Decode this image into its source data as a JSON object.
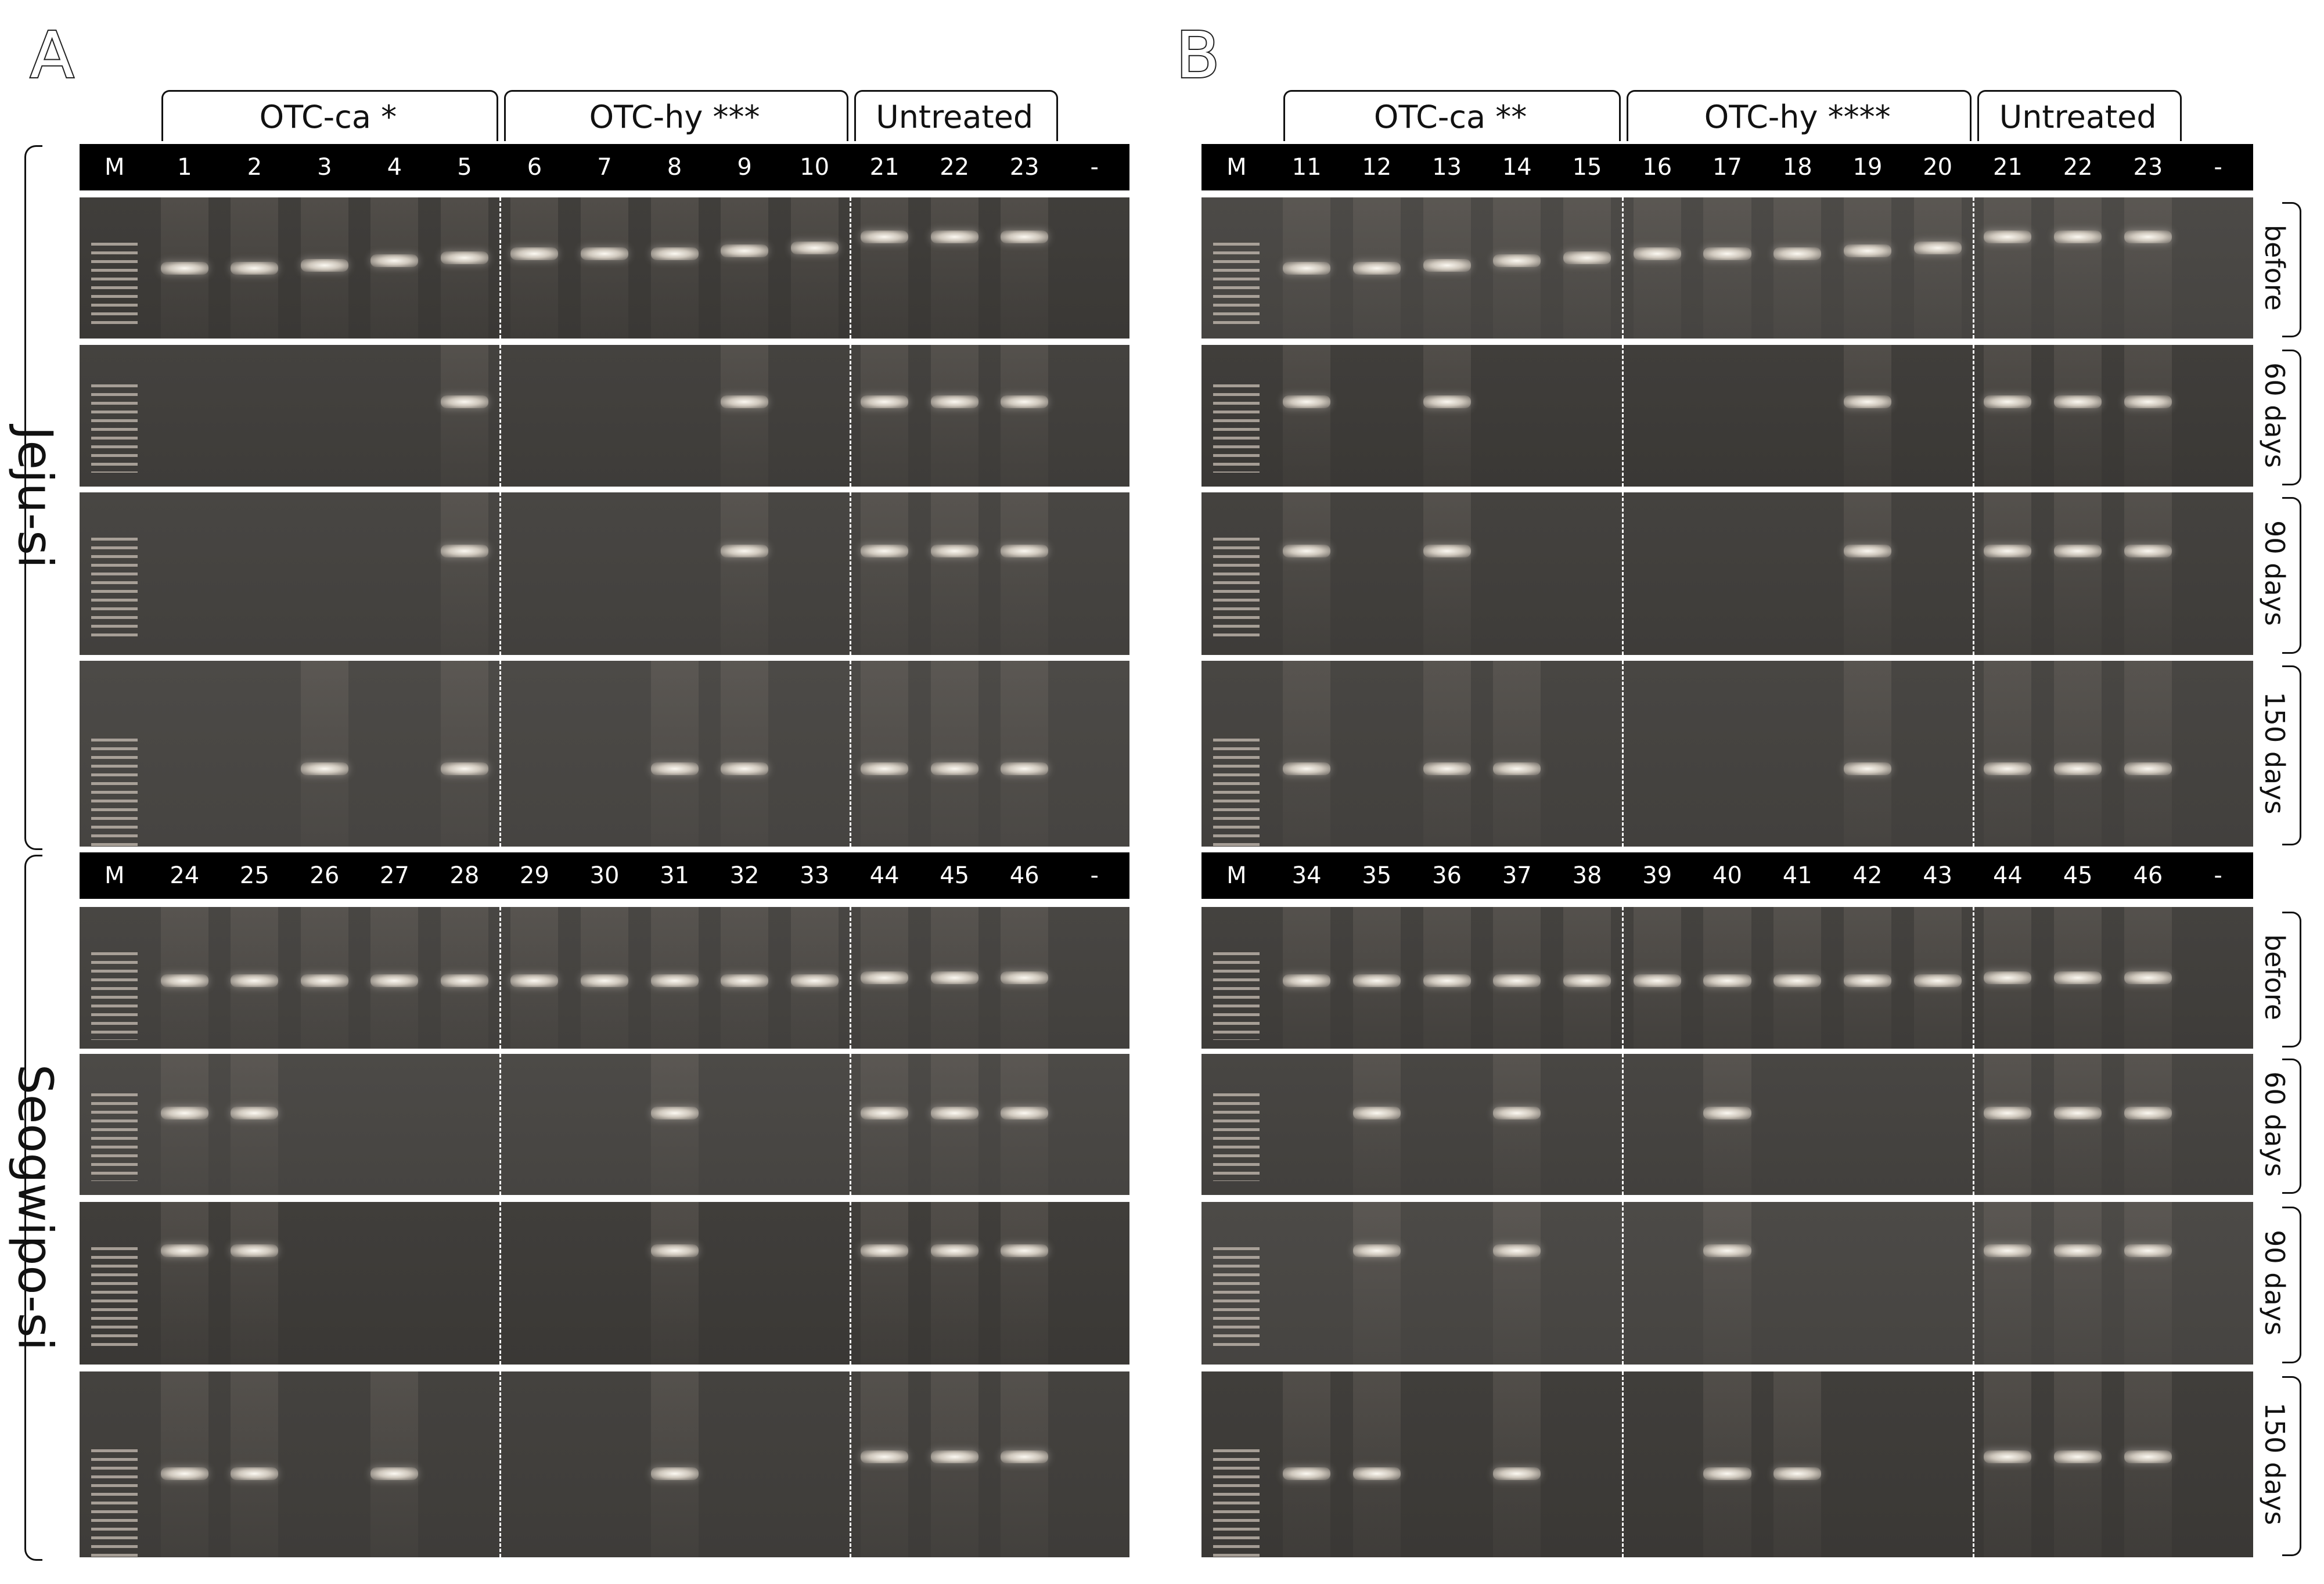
{
  "figure": {
    "panels": [
      {
        "letter": "A",
        "groups": [
          "OTC-ca *",
          "OTC-hy ***",
          "Untreated"
        ],
        "regions": [
          {
            "name": "Jeju-si",
            "lanes": [
              "M",
              "1",
              "2",
              "3",
              "4",
              "5",
              "6",
              "7",
              "8",
              "9",
              "10",
              "21",
              "22",
              "23",
              "-"
            ],
            "rows": [
              {
                "time": "before",
                "bands": [
                  1,
                  2,
                  3,
                  4,
                  5,
                  6,
                  7,
                  8,
                  9,
                  10,
                  11,
                  12,
                  13
                ]
              },
              {
                "time": "60 days",
                "bands": [
                  5,
                  9,
                  11,
                  12,
                  13
                ]
              },
              {
                "time": "90 days",
                "bands": [
                  5,
                  9,
                  11,
                  12,
                  13
                ]
              },
              {
                "time": "150 days",
                "bands": [
                  3,
                  5,
                  8,
                  9,
                  11,
                  12,
                  13
                ]
              }
            ]
          },
          {
            "name": "Seogwipo-si",
            "lanes": [
              "M",
              "24",
              "25",
              "26",
              "27",
              "28",
              "29",
              "30",
              "31",
              "32",
              "33",
              "44",
              "45",
              "46",
              "-"
            ],
            "rows": [
              {
                "time": "before",
                "bands": [
                  1,
                  2,
                  3,
                  4,
                  5,
                  6,
                  7,
                  8,
                  9,
                  10,
                  11,
                  12,
                  13
                ]
              },
              {
                "time": "60 days",
                "bands": [
                  1,
                  2,
                  8,
                  11,
                  12,
                  13
                ]
              },
              {
                "time": "90 days",
                "bands": [
                  1,
                  2,
                  8,
                  11,
                  12,
                  13
                ]
              },
              {
                "time": "150 days",
                "bands": [
                  1,
                  2,
                  4,
                  8,
                  11,
                  12,
                  13
                ]
              }
            ]
          }
        ]
      },
      {
        "letter": "B",
        "groups": [
          "OTC-ca **",
          "OTC-hy ****",
          "Untreated"
        ],
        "regions": [
          {
            "name": "Jeju-si",
            "lanes": [
              "M",
              "11",
              "12",
              "13",
              "14",
              "15",
              "16",
              "17",
              "18",
              "19",
              "20",
              "21",
              "22",
              "23",
              "-"
            ],
            "rows": [
              {
                "time": "before",
                "bands": [
                  1,
                  2,
                  3,
                  4,
                  5,
                  6,
                  7,
                  8,
                  9,
                  10,
                  11,
                  12,
                  13
                ]
              },
              {
                "time": "60 days",
                "bands": [
                  1,
                  3,
                  9,
                  11,
                  12,
                  13
                ]
              },
              {
                "time": "90 days",
                "bands": [
                  1,
                  3,
                  9,
                  11,
                  12,
                  13
                ]
              },
              {
                "time": "150 days",
                "bands": [
                  1,
                  3,
                  4,
                  9,
                  11,
                  12,
                  13
                ]
              }
            ]
          },
          {
            "name": "Seogwipo-si",
            "lanes": [
              "M",
              "34",
              "35",
              "36",
              "37",
              "38",
              "39",
              "40",
              "41",
              "42",
              "43",
              "44",
              "45",
              "46",
              "-"
            ],
            "rows": [
              {
                "time": "before",
                "bands": [
                  1,
                  2,
                  3,
                  4,
                  5,
                  6,
                  7,
                  8,
                  9,
                  10,
                  11,
                  12,
                  13
                ]
              },
              {
                "time": "60 days",
                "bands": [
                  2,
                  4,
                  7,
                  11,
                  12,
                  13
                ]
              },
              {
                "time": "90 days",
                "bands": [
                  2,
                  4,
                  7,
                  11,
                  12,
                  13
                ]
              },
              {
                "time": "150 days",
                "bands": [
                  1,
                  2,
                  4,
                  7,
                  8,
                  11,
                  12,
                  13
                ]
              }
            ]
          }
        ]
      }
    ]
  }
}
